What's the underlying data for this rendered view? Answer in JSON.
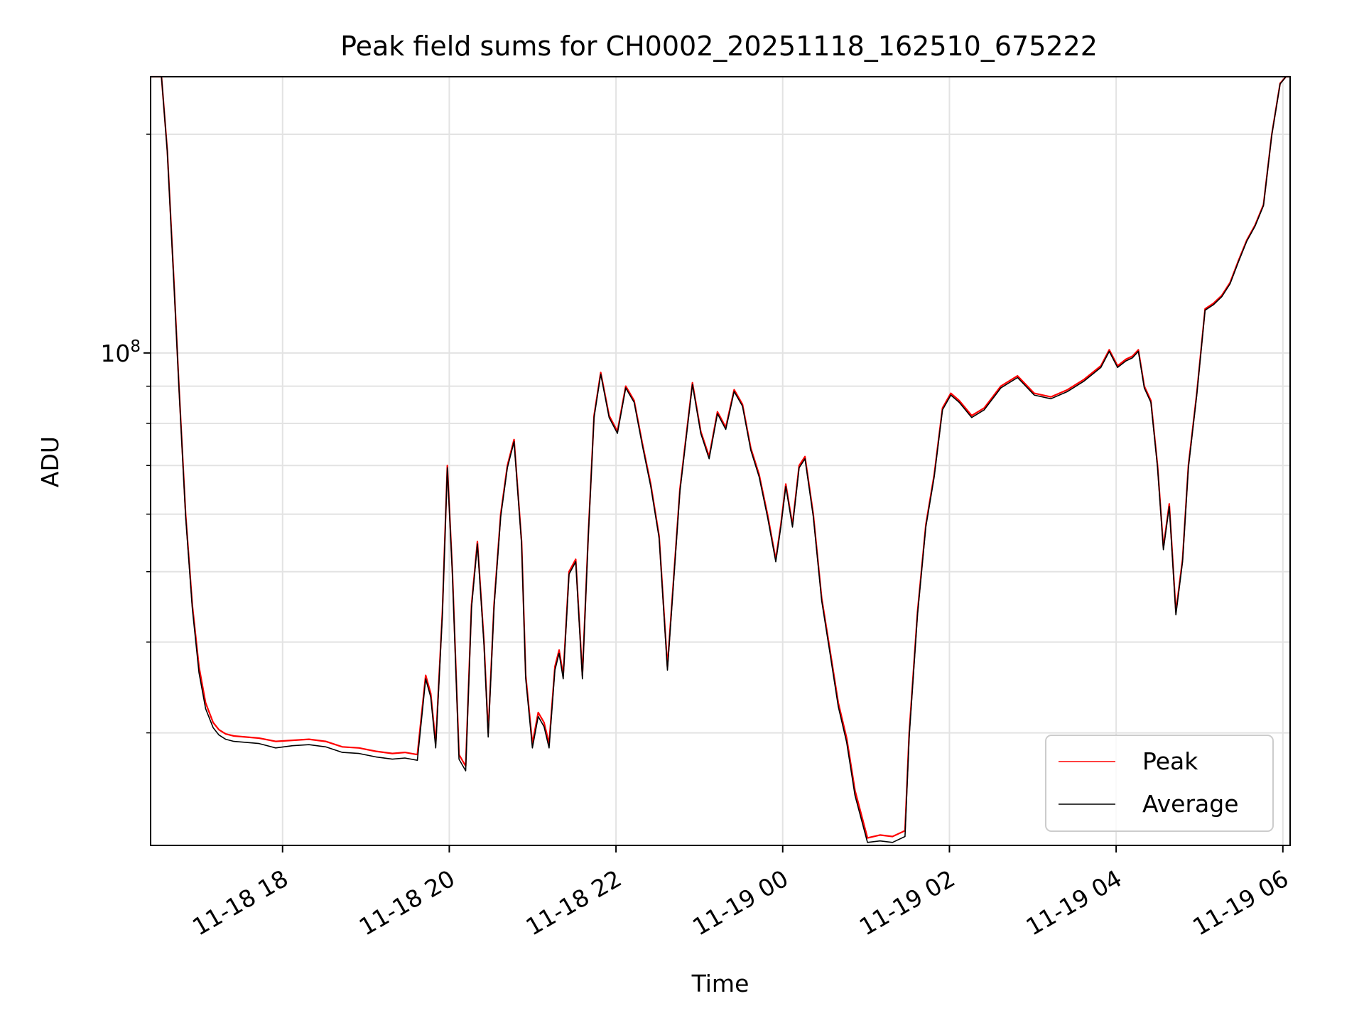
{
  "chart_data": {
    "type": "line",
    "title": "Peak field sums for CH0002_20251118_162510_675222",
    "xlabel": "Time",
    "ylabel": "ADU",
    "yscale": "log",
    "ylim": [
      21000000,
      240000000
    ],
    "xlim_hours_since_2025_11_18_1625": [
      0,
      13.67
    ],
    "x_ticks": [
      {
        "label": "11-18 18",
        "hours": 1.583
      },
      {
        "label": "11-18 20",
        "hours": 3.583
      },
      {
        "label": "11-18 22",
        "hours": 5.583
      },
      {
        "label": "11-19 00",
        "hours": 7.583
      },
      {
        "label": "11-19 02",
        "hours": 9.583
      },
      {
        "label": "11-19 04",
        "hours": 11.583
      },
      {
        "label": "11-19 06",
        "hours": 13.583
      }
    ],
    "y_major_tick": {
      "value": 100000000,
      "label_base": "10",
      "label_exp": "8"
    },
    "y_minor_ticks": [
      30000000,
      40000000,
      50000000,
      60000000,
      70000000,
      80000000,
      90000000,
      200000000
    ],
    "grid": true,
    "legend": {
      "position": "lower right",
      "entries": [
        {
          "name": "Peak",
          "color": "#ff0000"
        },
        {
          "name": "Average",
          "color": "#000000"
        }
      ]
    },
    "series": [
      {
        "name": "Peak",
        "color": "#ff0000",
        "x_hours": [
          0,
          0.06,
          0.13,
          0.2,
          0.28,
          0.34,
          0.42,
          0.5,
          0.58,
          0.66,
          0.75,
          0.82,
          0.9,
          1.0,
          1.15,
          1.3,
          1.5,
          1.7,
          1.9,
          2.1,
          2.3,
          2.5,
          2.7,
          2.9,
          3.05,
          3.2,
          3.3,
          3.36,
          3.42,
          3.5,
          3.56,
          3.62,
          3.7,
          3.78,
          3.85,
          3.92,
          4.0,
          4.05,
          4.12,
          4.2,
          4.28,
          4.36,
          4.45,
          4.5,
          4.58,
          4.65,
          4.72,
          4.78,
          4.85,
          4.9,
          4.95,
          5.02,
          5.1,
          5.18,
          5.25,
          5.32,
          5.4,
          5.5,
          5.6,
          5.7,
          5.8,
          5.9,
          6.0,
          6.1,
          6.2,
          6.35,
          6.5,
          6.6,
          6.7,
          6.8,
          6.9,
          7.0,
          7.1,
          7.2,
          7.3,
          7.4,
          7.5,
          7.56,
          7.62,
          7.7,
          7.78,
          7.85,
          7.95,
          8.05,
          8.15,
          8.25,
          8.35,
          8.45,
          8.6,
          8.75,
          8.9,
          9.05,
          9.1,
          9.2,
          9.3,
          9.4,
          9.5,
          9.6,
          9.7,
          9.85,
          10.0,
          10.2,
          10.4,
          10.6,
          10.8,
          11.0,
          11.2,
          11.4,
          11.5,
          11.6,
          11.7,
          11.78,
          11.85,
          11.92,
          12.0,
          12.08,
          12.15,
          12.22,
          12.3,
          12.38,
          12.45,
          12.55,
          12.65,
          12.75,
          12.85,
          12.95,
          13.05,
          13.15,
          13.25,
          13.35,
          13.45,
          13.55,
          13.62,
          13.67
        ],
        "values": [
          240000000,
          240000000,
          240000000,
          190000000,
          125000000,
          90000000,
          60000000,
          45000000,
          37000000,
          33000000,
          31000000,
          30300000,
          29900000,
          29700000,
          29600000,
          29500000,
          29200000,
          29300000,
          29400000,
          29200000,
          28700000,
          28600000,
          28300000,
          28100000,
          28200000,
          28000000,
          36000000,
          34000000,
          29000000,
          44000000,
          70000000,
          50000000,
          28000000,
          27000000,
          45000000,
          55000000,
          40000000,
          30000000,
          45000000,
          60000000,
          70000000,
          76000000,
          55000000,
          36000000,
          29000000,
          32000000,
          31000000,
          29000000,
          37000000,
          39000000,
          36000000,
          50000000,
          52000000,
          36000000,
          56000000,
          82000000,
          94000000,
          82000000,
          78000000,
          90000000,
          86000000,
          75000000,
          66000000,
          56000000,
          37000000,
          65000000,
          91000000,
          78000000,
          72000000,
          83000000,
          79000000,
          89000000,
          85000000,
          74000000,
          68000000,
          60000000,
          52000000,
          58000000,
          66000000,
          58000000,
          70000000,
          72000000,
          60000000,
          46000000,
          39000000,
          33000000,
          29500000,
          25000000,
          21500000,
          21700000,
          21600000,
          22000000,
          30000000,
          44000000,
          58000000,
          68000000,
          84000000,
          88000000,
          86000000,
          82000000,
          84000000,
          90000000,
          93000000,
          88000000,
          87000000,
          89000000,
          92000000,
          96000000,
          101000000,
          96000000,
          98000000,
          99000000,
          101000000,
          90000000,
          86000000,
          70000000,
          54000000,
          62000000,
          44000000,
          52000000,
          70000000,
          88000000,
          115000000,
          117000000,
          120000000,
          125000000,
          134000000,
          143000000,
          150000000,
          160000000,
          200000000,
          235000000,
          240000000,
          240000000
        ]
      },
      {
        "name": "Average",
        "color": "#000000",
        "x_hours": [
          0,
          0.06,
          0.13,
          0.2,
          0.28,
          0.34,
          0.42,
          0.5,
          0.58,
          0.66,
          0.75,
          0.82,
          0.9,
          1.0,
          1.15,
          1.3,
          1.5,
          1.7,
          1.9,
          2.1,
          2.3,
          2.5,
          2.7,
          2.9,
          3.05,
          3.2,
          3.3,
          3.36,
          3.42,
          3.5,
          3.56,
          3.62,
          3.7,
          3.78,
          3.85,
          3.92,
          4.0,
          4.05,
          4.12,
          4.2,
          4.28,
          4.36,
          4.45,
          4.5,
          4.58,
          4.65,
          4.72,
          4.78,
          4.85,
          4.9,
          4.95,
          5.02,
          5.1,
          5.18,
          5.25,
          5.32,
          5.4,
          5.5,
          5.6,
          5.7,
          5.8,
          5.9,
          6.0,
          6.1,
          6.2,
          6.35,
          6.5,
          6.6,
          6.7,
          6.8,
          6.9,
          7.0,
          7.1,
          7.2,
          7.3,
          7.4,
          7.5,
          7.56,
          7.62,
          7.7,
          7.78,
          7.85,
          7.95,
          8.05,
          8.15,
          8.25,
          8.35,
          8.45,
          8.6,
          8.75,
          8.9,
          9.05,
          9.1,
          9.2,
          9.3,
          9.4,
          9.5,
          9.6,
          9.7,
          9.85,
          10.0,
          10.2,
          10.4,
          10.6,
          10.8,
          11.0,
          11.2,
          11.4,
          11.5,
          11.6,
          11.7,
          11.78,
          11.85,
          11.92,
          12.0,
          12.08,
          12.15,
          12.22,
          12.3,
          12.38,
          12.45,
          12.55,
          12.65,
          12.75,
          12.85,
          12.95,
          13.05,
          13.15,
          13.25,
          13.35,
          13.45,
          13.55,
          13.62,
          13.67
        ],
        "values": [
          240000000,
          240000000,
          240000000,
          189000000,
          124000000,
          89500000,
          59500000,
          44500000,
          36300000,
          32400000,
          30500000,
          29800000,
          29400000,
          29200000,
          29100000,
          29000000,
          28600000,
          28800000,
          28900000,
          28700000,
          28200000,
          28100000,
          27800000,
          27600000,
          27700000,
          27500000,
          35600000,
          33600000,
          28600000,
          43600000,
          69500000,
          49600000,
          27600000,
          26600000,
          44600000,
          54600000,
          39600000,
          29600000,
          44600000,
          59500000,
          69500000,
          75500000,
          54600000,
          35600000,
          28600000,
          31600000,
          30600000,
          28600000,
          36600000,
          38600000,
          35600000,
          49600000,
          51600000,
          35600000,
          55600000,
          81500000,
          93500000,
          81500000,
          77500000,
          89500000,
          85500000,
          74500000,
          65500000,
          55600000,
          36600000,
          64500000,
          90500000,
          77500000,
          71500000,
          82500000,
          78500000,
          88500000,
          84500000,
          73500000,
          67500000,
          59500000,
          51600000,
          57600000,
          65500000,
          57600000,
          69500000,
          71500000,
          59500000,
          45600000,
          38600000,
          32600000,
          29100000,
          24600000,
          21200000,
          21300000,
          21200000,
          21600000,
          29600000,
          43600000,
          57600000,
          67500000,
          83500000,
          87500000,
          85500000,
          81500000,
          83500000,
          89500000,
          92500000,
          87500000,
          86500000,
          88500000,
          91500000,
          95500000,
          100500000,
          95500000,
          97500000,
          98500000,
          100500000,
          89500000,
          85500000,
          69500000,
          53600000,
          61500000,
          43600000,
          51600000,
          69500000,
          87500000,
          114500000,
          116500000,
          119500000,
          124500000,
          133500000,
          142500000,
          149500000,
          159500000,
          199500000,
          234500000,
          240000000,
          240000000
        ]
      }
    ]
  }
}
